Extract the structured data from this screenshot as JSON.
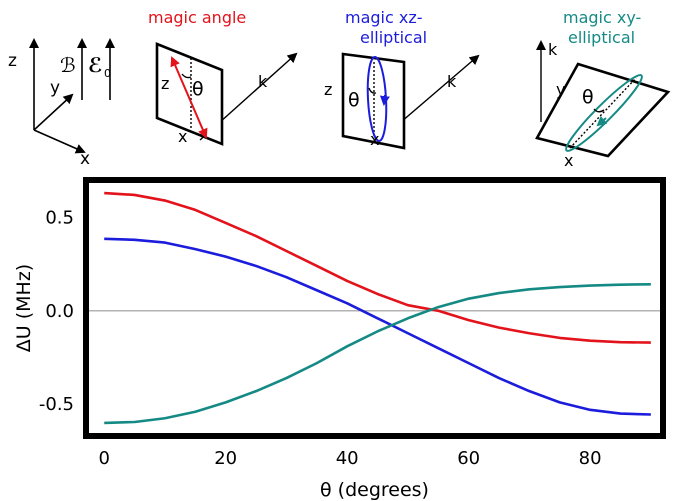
{
  "diagrams": {
    "axes": {
      "z_label": "z",
      "y_label": "y",
      "x_label": "x",
      "b_label": "ℬ",
      "e_label": "ℰ",
      "e_sub": "0"
    },
    "magic_angle": {
      "title": "magic angle",
      "color": "#e3131b",
      "z_label": "z",
      "x_label": "x",
      "k_label": "k",
      "theta_label": "θ"
    },
    "magic_xz": {
      "title_line1": "magic xz-",
      "title_line2": "elliptical",
      "color": "#1c1cdc",
      "z_label": "z",
      "x_label": "x",
      "k_label": "k",
      "theta_label": "θ"
    },
    "magic_xy": {
      "title_line1": "magic xy-",
      "title_line2": "elliptical",
      "color": "#158a85",
      "y_label": "y",
      "x_label": "x",
      "k_label": "k",
      "theta_label": "θ"
    }
  },
  "chart_data": {
    "type": "line",
    "xlabel": "θ (degrees)",
    "ylabel": "ΔU (MHz)",
    "xlim": [
      -3,
      92
    ],
    "ylim": [
      -0.67,
      0.7
    ],
    "xticks": [
      0,
      20,
      40,
      60,
      80
    ],
    "yticks": [
      0.5,
      0.0,
      -0.5
    ],
    "ytick_labels": [
      "0.5",
      "0.0",
      "-0.5"
    ],
    "zero_line": true,
    "grid": false,
    "x": [
      0,
      5,
      10,
      15,
      20,
      25,
      30,
      35,
      40,
      45,
      50,
      55,
      60,
      65,
      70,
      75,
      80,
      85,
      90
    ],
    "series": [
      {
        "color": "#e3131b",
        "values": [
          0.63,
          0.62,
          0.59,
          0.54,
          0.47,
          0.4,
          0.32,
          0.24,
          0.16,
          0.09,
          0.03,
          0.0,
          -0.05,
          -0.09,
          -0.12,
          -0.145,
          -0.16,
          -0.168,
          -0.17
        ]
      },
      {
        "color": "#1c1cdc",
        "values": [
          0.385,
          0.38,
          0.365,
          0.33,
          0.29,
          0.24,
          0.18,
          0.11,
          0.04,
          -0.04,
          -0.12,
          -0.2,
          -0.28,
          -0.36,
          -0.43,
          -0.49,
          -0.53,
          -0.55,
          -0.555
        ]
      },
      {
        "color": "#158a85",
        "values": [
          -0.6,
          -0.595,
          -0.575,
          -0.54,
          -0.49,
          -0.43,
          -0.36,
          -0.28,
          -0.19,
          -0.11,
          -0.04,
          0.02,
          0.065,
          0.095,
          0.115,
          0.127,
          0.135,
          0.14,
          0.142
        ]
      }
    ]
  }
}
